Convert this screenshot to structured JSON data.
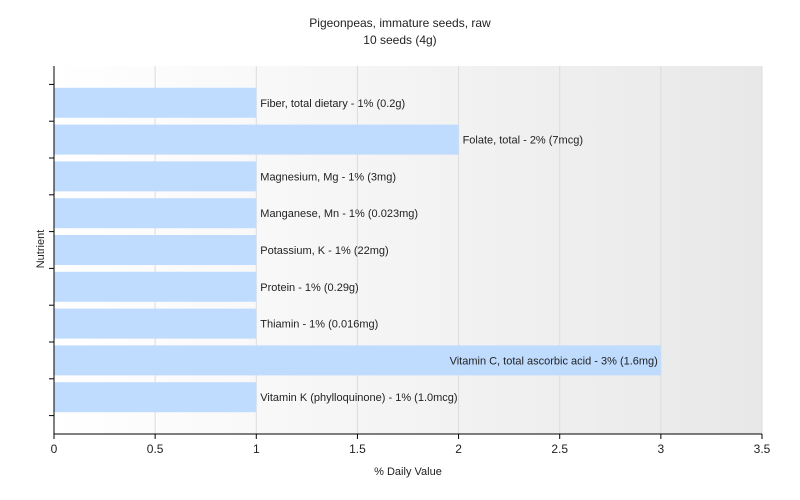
{
  "chart_data": {
    "type": "bar",
    "orientation": "horizontal",
    "title": "Pigeonpeas, immature seeds, raw",
    "subtitle": "10 seeds (4g)",
    "xlabel": "% Daily Value",
    "ylabel": "Nutrient",
    "xlim": [
      0,
      3.5
    ],
    "xticks": [
      "0",
      "0.5",
      "1",
      "1.5",
      "2",
      "2.5",
      "3",
      "3.5"
    ],
    "grid": "vertical",
    "categories": [
      "Fiber, total dietary",
      "Folate, total",
      "Magnesium, Mg",
      "Manganese, Mn",
      "Potassium, K",
      "Protein",
      "Thiamin",
      "Vitamin C, total ascorbic acid",
      "Vitamin K (phylloquinone)"
    ],
    "values": [
      1,
      2,
      1,
      1,
      1,
      1,
      1,
      3,
      1
    ],
    "data_labels": [
      "Fiber, total dietary - 1% (0.2g)",
      "Folate, total - 2% (7mcg)",
      "Magnesium, Mg - 1% (3mg)",
      "Manganese, Mn - 1% (0.023mg)",
      "Potassium, K - 1% (22mg)",
      "Protein - 1% (0.29g)",
      "Thiamin - 1% (0.016mg)",
      "Vitamin C, total ascorbic acid - 3% (1.6mg)",
      "Vitamin K (phylloquinone) - 1% (1.0mcg)"
    ],
    "colors": {
      "bar": "#bfdcff",
      "plot_gradient_start": "#ffffff",
      "plot_gradient_end": "#e8e8e8",
      "grid": "#dcdcdc",
      "axis": "#000000",
      "text": "#222222"
    }
  }
}
